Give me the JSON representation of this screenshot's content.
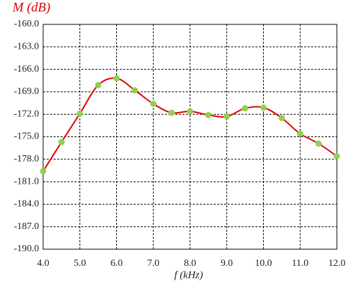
{
  "chart_data": {
    "type": "line",
    "y_label": "M (dB)",
    "x_label": "f (kHz)",
    "x": [
      4.0,
      4.5,
      5.0,
      5.5,
      6.0,
      6.5,
      7.0,
      7.5,
      8.0,
      8.5,
      9.0,
      9.5,
      10.0,
      10.5,
      11.0,
      11.5,
      12.0
    ],
    "series": [
      {
        "color": "#e00000",
        "marker_color": "#92d050",
        "values": [
          -179.6,
          -175.7,
          -171.9,
          -168.1,
          -167.2,
          -168.8,
          -170.6,
          -171.8,
          -171.6,
          -172.1,
          -172.3,
          -171.2,
          -171.1,
          -172.5,
          -174.6,
          -175.9,
          -177.6
        ]
      }
    ],
    "xlim": [
      4,
      12
    ],
    "xticks": [
      {
        "value": 4,
        "label": "4.0"
      },
      {
        "value": 5,
        "label": "5.0"
      },
      {
        "value": 6,
        "label": "6.0"
      },
      {
        "value": 7,
        "label": "7.0"
      },
      {
        "value": 8,
        "label": "8.0"
      },
      {
        "value": 9,
        "label": "9.0"
      },
      {
        "value": 10,
        "label": "10.0"
      },
      {
        "value": 11,
        "label": "11.0"
      },
      {
        "value": 12,
        "label": "12.0"
      }
    ],
    "ylim": [
      -190,
      -160
    ],
    "yticks": [
      {
        "value": -160,
        "label": "-160.0"
      },
      {
        "value": -163,
        "label": "-163.0"
      },
      {
        "value": -166,
        "label": "-166.0"
      },
      {
        "value": -169,
        "label": "-169.0"
      },
      {
        "value": -172,
        "label": "-172.0"
      },
      {
        "value": -175,
        "label": "-175.0"
      },
      {
        "value": -178,
        "label": "-178.0"
      },
      {
        "value": -181,
        "label": "-181.0"
      },
      {
        "value": -184,
        "label": "-184.0"
      },
      {
        "value": -187,
        "label": "-187.0"
      },
      {
        "value": -190,
        "label": "-190.0"
      }
    ],
    "grid": true
  }
}
